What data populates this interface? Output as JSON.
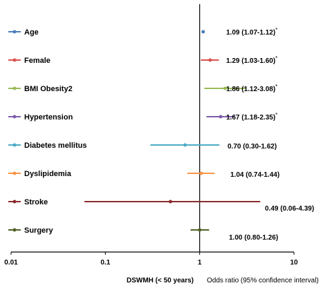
{
  "chart_data": {
    "type": "forest",
    "title": "",
    "x_scale": "log",
    "xlim": [
      0.01,
      10
    ],
    "reference_value": 1,
    "x_ticks": [
      "0.01",
      "0.1",
      "1",
      "10"
    ],
    "xlabel_left": "DSWMH (< 50 years)",
    "xlabel_right": "Odds ratio (95% confidence interval)",
    "legend_placement": "left",
    "series": [
      {
        "name": "Age",
        "or": 1.09,
        "lo": 1.07,
        "hi": 1.12,
        "label": "1.09 (1.07-1.12)",
        "sig": "*",
        "color": "#4a7ebb"
      },
      {
        "name": "Female",
        "or": 1.29,
        "lo": 1.03,
        "hi": 1.6,
        "label": "1.29 (1.03-1.60)",
        "sig": "*",
        "color": "#d9534f"
      },
      {
        "name": "BMI Obesity2",
        "or": 1.86,
        "lo": 1.12,
        "hi": 3.08,
        "label": "1.86 (1.12-3.08)",
        "sig": "*",
        "color": "#9bbb59"
      },
      {
        "name": "Hypertension",
        "or": 1.67,
        "lo": 1.18,
        "hi": 2.35,
        "label": "1.67 (1.18-2.35)",
        "sig": "*",
        "color": "#7e5ea8"
      },
      {
        "name": "Diabetes mellitus",
        "or": 0.7,
        "lo": 0.3,
        "hi": 1.62,
        "label": "0.70 (0.30-1.62)",
        "sig": "",
        "color": "#4bacc6"
      },
      {
        "name": "Dyslipidemia",
        "or": 1.04,
        "lo": 0.74,
        "hi": 1.44,
        "label": "1.04 (0.74-1.44)",
        "sig": "",
        "color": "#f79646"
      },
      {
        "name": "Stroke",
        "or": 0.49,
        "lo": 0.06,
        "hi": 4.39,
        "label": "0.49 (0.06-4.39)",
        "sig": "",
        "color": "#8b2a2a"
      },
      {
        "name": "Surgery",
        "or": 1.0,
        "lo": 0.8,
        "hi": 1.26,
        "label": "1.00 (0.80-1.26)",
        "sig": "",
        "color": "#4f6228"
      }
    ]
  }
}
